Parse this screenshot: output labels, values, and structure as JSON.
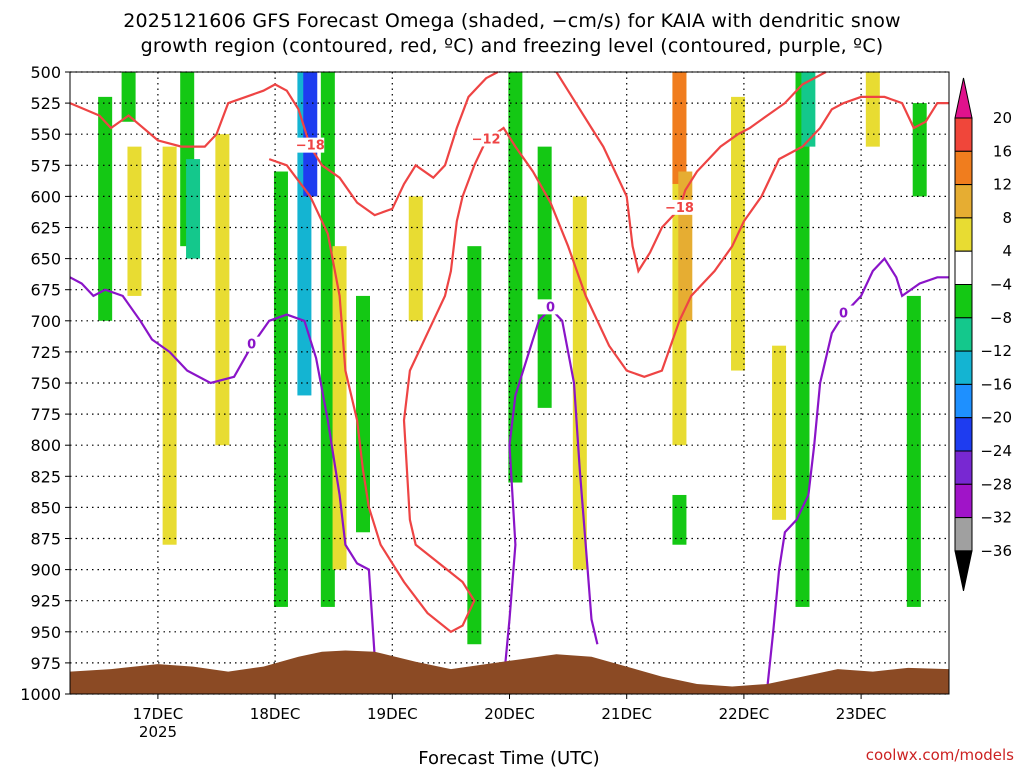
{
  "title": {
    "line1": "2025121606 GFS Forecast Omega (shaded, −cm/s) for KAIA with dendritic snow",
    "line2": "growth region (contoured, red, ºC) and freezing level (contoured, purple, ºC)"
  },
  "credit": "coolwx.com/models",
  "chart_data": {
    "type": "heatmap",
    "title": "2025121606 GFS Forecast Omega (shaded, −cm/s) for KAIA with dendritic snow growth region (contoured, red, ºC) and freezing level (contoured, purple, ºC)",
    "xlabel": "Forecast Time (UTC)",
    "ylabel": "Pressure (hPa)",
    "x_ticks": [
      "17DEC",
      "18DEC",
      "19DEC",
      "20DEC",
      "21DEC",
      "22DEC",
      "23DEC"
    ],
    "x_year_label": "2025",
    "x_range_days": [
      16.25,
      23.75
    ],
    "y_ticks": [
      500,
      525,
      550,
      575,
      600,
      625,
      650,
      675,
      700,
      725,
      750,
      775,
      800,
      825,
      850,
      875,
      900,
      925,
      950,
      975,
      1000
    ],
    "y_range_hpa": [
      500,
      1000
    ],
    "grid": true,
    "colorbar": {
      "labels": [
        "20",
        "16",
        "12",
        "8",
        "4",
        "−4",
        "−8",
        "−12",
        "−16",
        "−20",
        "−24",
        "−28",
        "−32",
        "−36"
      ],
      "colors": [
        "#e0128c",
        "#f0463a",
        "#f07d1e",
        "#e6ad32",
        "#e8dc32",
        "#ffffff",
        "#14c814",
        "#14c88c",
        "#14b4d2",
        "#1e90ff",
        "#1e3cf0",
        "#7828d2",
        "#a014c8",
        "#a0a0a0",
        "#000000"
      ]
    },
    "omega_regions": [
      {
        "t": 16.55,
        "p": [
          520,
          700
        ],
        "color": "#14c814"
      },
      {
        "t": 16.75,
        "p": [
          500,
          540
        ],
        "color": "#14c814"
      },
      {
        "t": 16.8,
        "p": [
          560,
          680
        ],
        "color": "#e8dc32"
      },
      {
        "t": 17.1,
        "p": [
          560,
          880
        ],
        "color": "#e8dc32"
      },
      {
        "t": 17.25,
        "p": [
          500,
          640
        ],
        "color": "#14c814"
      },
      {
        "t": 17.3,
        "p": [
          570,
          650
        ],
        "color": "#14c88c"
      },
      {
        "t": 17.55,
        "p": [
          550,
          800
        ],
        "color": "#e8dc32"
      },
      {
        "t": 18.05,
        "p": [
          580,
          930
        ],
        "color": "#14c814"
      },
      {
        "t": 18.25,
        "p": [
          500,
          760
        ],
        "color": "#14b4d2"
      },
      {
        "t": 18.3,
        "p": [
          500,
          600
        ],
        "color": "#1e3cf0"
      },
      {
        "t": 18.45,
        "p": [
          500,
          930
        ],
        "color": "#14c814"
      },
      {
        "t": 18.55,
        "p": [
          640,
          900
        ],
        "color": "#e8dc32"
      },
      {
        "t": 18.75,
        "p": [
          680,
          870
        ],
        "color": "#14c814"
      },
      {
        "t": 19.2,
        "p": [
          600,
          700
        ],
        "color": "#e8dc32"
      },
      {
        "t": 19.7,
        "p": [
          640,
          960
        ],
        "color": "#14c814"
      },
      {
        "t": 20.05,
        "p": [
          500,
          830
        ],
        "color": "#14c814"
      },
      {
        "t": 20.3,
        "p": [
          560,
          770
        ],
        "color": "#14c814"
      },
      {
        "t": 20.6,
        "p": [
          600,
          900
        ],
        "color": "#e8dc32"
      },
      {
        "t": 21.45,
        "p": [
          500,
          800
        ],
        "color": "#e8dc32"
      },
      {
        "t": 21.45,
        "p": [
          500,
          590
        ],
        "color": "#f07d1e"
      },
      {
        "t": 21.5,
        "p": [
          580,
          700
        ],
        "color": "#e6ad32"
      },
      {
        "t": 21.95,
        "p": [
          520,
          740
        ],
        "color": "#e8dc32"
      },
      {
        "t": 22.3,
        "p": [
          720,
          860
        ],
        "color": "#e8dc32"
      },
      {
        "t": 22.5,
        "p": [
          500,
          930
        ],
        "color": "#14c814"
      },
      {
        "t": 22.55,
        "p": [
          500,
          560
        ],
        "color": "#14c88c"
      },
      {
        "t": 23.1,
        "p": [
          500,
          560
        ],
        "color": "#e8dc32"
      },
      {
        "t": 23.45,
        "p": [
          680,
          930
        ],
        "color": "#14c814"
      },
      {
        "t": 23.5,
        "p": [
          525,
          600
        ],
        "color": "#14c814"
      },
      {
        "t": 21.45,
        "p": [
          840,
          880
        ],
        "color": "#14c814"
      }
    ],
    "contours": [
      {
        "name": "-18",
        "color": "#ee4444",
        "label": "−18",
        "points": [
          [
            16.25,
            525
          ],
          [
            16.5,
            535
          ],
          [
            16.6,
            545
          ],
          [
            16.75,
            535
          ],
          [
            17.0,
            555
          ],
          [
            17.2,
            560
          ],
          [
            17.4,
            560
          ],
          [
            17.5,
            550
          ],
          [
            17.6,
            525
          ],
          [
            17.75,
            520
          ],
          [
            17.9,
            515
          ],
          [
            18.0,
            510
          ],
          [
            18.1,
            515
          ],
          [
            18.2,
            530
          ],
          [
            18.3,
            560
          ],
          [
            18.4,
            575
          ],
          [
            18.55,
            585
          ],
          [
            18.7,
            605
          ],
          [
            18.85,
            615
          ],
          [
            19.0,
            610
          ],
          [
            19.1,
            590
          ],
          [
            19.2,
            575
          ],
          [
            19.35,
            585
          ],
          [
            19.45,
            575
          ],
          [
            19.55,
            545
          ],
          [
            19.65,
            520
          ],
          [
            19.8,
            505
          ],
          [
            19.9,
            500
          ]
        ]
      },
      {
        "name": "-18b",
        "color": "#ee4444",
        "label": "−18",
        "points": [
          [
            20.4,
            500
          ],
          [
            20.5,
            515
          ],
          [
            20.6,
            530
          ],
          [
            20.7,
            545
          ],
          [
            20.8,
            560
          ],
          [
            20.9,
            580
          ],
          [
            21.0,
            600
          ],
          [
            21.05,
            640
          ],
          [
            21.1,
            660
          ],
          [
            21.2,
            645
          ],
          [
            21.3,
            625
          ],
          [
            21.45,
            610
          ],
          [
            21.5,
            595
          ],
          [
            21.6,
            580
          ],
          [
            21.7,
            570
          ],
          [
            21.8,
            560
          ],
          [
            21.95,
            550
          ],
          [
            22.05,
            545
          ],
          [
            22.2,
            535
          ],
          [
            22.35,
            525
          ],
          [
            22.5,
            510
          ],
          [
            22.7,
            500
          ]
        ]
      },
      {
        "name": "-12",
        "color": "#ee4444",
        "label": "−12",
        "points": [
          [
            17.95,
            570
          ],
          [
            18.1,
            575
          ],
          [
            18.3,
            600
          ],
          [
            18.45,
            630
          ],
          [
            18.55,
            680
          ],
          [
            18.6,
            740
          ],
          [
            18.7,
            780
          ],
          [
            18.75,
            820
          ],
          [
            18.8,
            850
          ],
          [
            18.9,
            880
          ],
          [
            19.1,
            910
          ],
          [
            19.3,
            935
          ],
          [
            19.5,
            950
          ],
          [
            19.6,
            945
          ],
          [
            19.7,
            925
          ],
          [
            19.6,
            910
          ],
          [
            19.4,
            895
          ],
          [
            19.2,
            880
          ],
          [
            19.15,
            860
          ],
          [
            19.1,
            780
          ],
          [
            19.15,
            740
          ],
          [
            19.25,
            720
          ],
          [
            19.35,
            700
          ],
          [
            19.45,
            680
          ],
          [
            19.5,
            660
          ],
          [
            19.55,
            620
          ],
          [
            19.6,
            600
          ],
          [
            19.7,
            575
          ],
          [
            19.8,
            555
          ],
          [
            19.95,
            545
          ],
          [
            20.05,
            560
          ],
          [
            20.2,
            580
          ],
          [
            20.35,
            605
          ],
          [
            20.5,
            640
          ],
          [
            20.65,
            680
          ],
          [
            20.85,
            720
          ],
          [
            21.0,
            740
          ],
          [
            21.15,
            745
          ],
          [
            21.3,
            740
          ],
          [
            21.45,
            700
          ],
          [
            21.55,
            680
          ],
          [
            21.75,
            660
          ],
          [
            21.9,
            640
          ],
          [
            22.0,
            620
          ],
          [
            22.15,
            600
          ],
          [
            22.3,
            570
          ],
          [
            22.5,
            560
          ],
          [
            22.65,
            545
          ],
          [
            22.75,
            530
          ],
          [
            22.85,
            525
          ],
          [
            23.0,
            520
          ],
          [
            23.2,
            520
          ],
          [
            23.35,
            525
          ],
          [
            23.45,
            545
          ],
          [
            23.55,
            540
          ],
          [
            23.65,
            525
          ],
          [
            23.75,
            525
          ]
        ]
      },
      {
        "name": "0",
        "color": "#8a14c8",
        "label": "0",
        "points": [
          [
            16.25,
            665
          ],
          [
            16.35,
            670
          ],
          [
            16.45,
            680
          ],
          [
            16.55,
            675
          ],
          [
            16.7,
            680
          ],
          [
            16.85,
            700
          ],
          [
            16.95,
            715
          ],
          [
            17.1,
            725
          ],
          [
            17.25,
            740
          ],
          [
            17.45,
            750
          ],
          [
            17.65,
            745
          ],
          [
            17.8,
            720
          ],
          [
            17.95,
            700
          ],
          [
            18.1,
            695
          ],
          [
            18.25,
            700
          ],
          [
            18.35,
            730
          ],
          [
            18.45,
            780
          ],
          [
            18.55,
            840
          ],
          [
            18.6,
            880
          ],
          [
            18.7,
            895
          ],
          [
            18.8,
            900
          ],
          [
            18.85,
            970
          ]
        ]
      },
      {
        "name": "0b",
        "color": "#8a14c8",
        "label": "0",
        "points": [
          [
            19.95,
            990
          ],
          [
            20.0,
            940
          ],
          [
            20.05,
            880
          ],
          [
            20.0,
            800
          ],
          [
            20.05,
            760
          ],
          [
            20.15,
            730
          ],
          [
            20.25,
            700
          ],
          [
            20.35,
            690
          ],
          [
            20.45,
            700
          ],
          [
            20.55,
            750
          ],
          [
            20.6,
            820
          ],
          [
            20.65,
            880
          ],
          [
            20.7,
            940
          ],
          [
            20.75,
            960
          ]
        ]
      },
      {
        "name": "0c",
        "color": "#8a14c8",
        "label": "0",
        "points": [
          [
            22.2,
            995
          ],
          [
            22.25,
            950
          ],
          [
            22.3,
            900
          ],
          [
            22.35,
            870
          ],
          [
            22.45,
            860
          ],
          [
            22.55,
            840
          ],
          [
            22.6,
            800
          ],
          [
            22.65,
            750
          ],
          [
            22.75,
            710
          ],
          [
            22.85,
            695
          ],
          [
            23.0,
            680
          ],
          [
            23.1,
            660
          ],
          [
            23.2,
            650
          ],
          [
            23.3,
            665
          ],
          [
            23.35,
            680
          ],
          [
            23.5,
            670
          ],
          [
            23.65,
            665
          ],
          [
            23.75,
            665
          ]
        ]
      }
    ]
  }
}
